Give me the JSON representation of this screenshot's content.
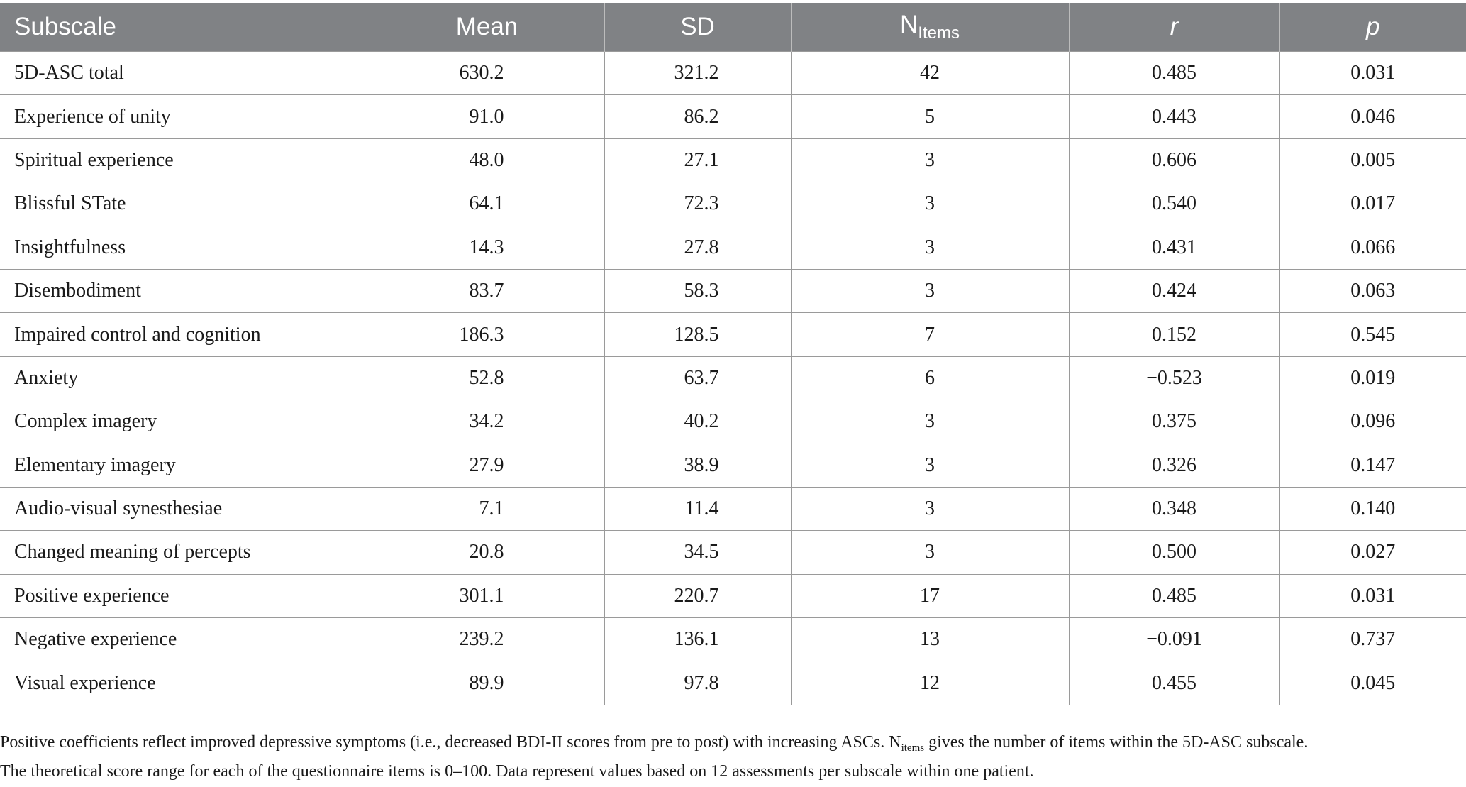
{
  "table": {
    "headers": {
      "subscale": "Subscale",
      "mean": "Mean",
      "sd": "SD",
      "n_items_main": "N",
      "n_items_sub": "Items",
      "r": "r",
      "p": "p"
    },
    "rows": [
      {
        "subscale": "5D-ASC total",
        "mean": "630.2",
        "sd": "321.2",
        "n_items": "42",
        "r": "0.485",
        "p": "0.031"
      },
      {
        "subscale": "Experience of unity",
        "mean": "91.0",
        "sd": "86.2",
        "n_items": "5",
        "r": "0.443",
        "p": "0.046"
      },
      {
        "subscale": "Spiritual experience",
        "mean": "48.0",
        "sd": "27.1",
        "n_items": "3",
        "r": "0.606",
        "p": "0.005"
      },
      {
        "subscale": "Blissful STate",
        "mean": "64.1",
        "sd": "72.3",
        "n_items": "3",
        "r": "0.540",
        "p": "0.017"
      },
      {
        "subscale": "Insightfulness",
        "mean": "14.3",
        "sd": "27.8",
        "n_items": "3",
        "r": "0.431",
        "p": "0.066"
      },
      {
        "subscale": "Disembodiment",
        "mean": "83.7",
        "sd": "58.3",
        "n_items": "3",
        "r": "0.424",
        "p": "0.063"
      },
      {
        "subscale": "Impaired control and cognition",
        "mean": "186.3",
        "sd": "128.5",
        "n_items": "7",
        "r": "0.152",
        "p": "0.545"
      },
      {
        "subscale": "Anxiety",
        "mean": "52.8",
        "sd": "63.7",
        "n_items": "6",
        "r": "−0.523",
        "p": "0.019"
      },
      {
        "subscale": "Complex imagery",
        "mean": "34.2",
        "sd": "40.2",
        "n_items": "3",
        "r": "0.375",
        "p": "0.096"
      },
      {
        "subscale": "Elementary imagery",
        "mean": "27.9",
        "sd": "38.9",
        "n_items": "3",
        "r": "0.326",
        "p": "0.147"
      },
      {
        "subscale": "Audio-visual synesthesiae",
        "mean": "7.1",
        "sd": "11.4",
        "n_items": "3",
        "r": "0.348",
        "p": "0.140"
      },
      {
        "subscale": "Changed meaning of percepts",
        "mean": "20.8",
        "sd": "34.5",
        "n_items": "3",
        "r": "0.500",
        "p": "0.027"
      },
      {
        "subscale": "Positive experience",
        "mean": "301.1",
        "sd": "220.7",
        "n_items": "17",
        "r": "0.485",
        "p": "0.031"
      },
      {
        "subscale": "Negative experience",
        "mean": "239.2",
        "sd": "136.1",
        "n_items": "13",
        "r": "−0.091",
        "p": "0.737"
      },
      {
        "subscale": "Visual experience",
        "mean": "89.9",
        "sd": "97.8",
        "n_items": "12",
        "r": "0.455",
        "p": "0.045"
      }
    ]
  },
  "footnote": {
    "line1_part1": "Positive coefficients reflect improved depressive symptoms (i.e., decreased BDI-II scores from pre to post) with increasing ASCs. N",
    "line1_sub": "items",
    "line1_part2": " gives the number of items within the 5D-ASC subscale.",
    "line2": "The theoretical score range for each of the questionnaire items is 0–100. Data represent values based on 12 assessments per subscale within one patient."
  }
}
